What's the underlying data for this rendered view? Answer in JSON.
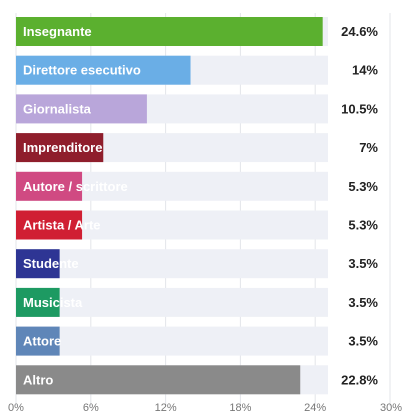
{
  "chart_data": {
    "type": "bar",
    "orientation": "horizontal",
    "categories": [
      "Insegnante",
      "Direttore esecutivo",
      "Giornalista",
      "Imprenditore",
      "Autore / scrittore",
      "Artista / Arte",
      "Studente",
      "Musicista",
      "Attore",
      "Altro"
    ],
    "values": [
      24.6,
      14,
      10.5,
      7,
      5.3,
      5.3,
      3.5,
      3.5,
      3.5,
      22.8
    ],
    "value_labels": [
      "24.6%",
      "14%",
      "10.5%",
      "7%",
      "5.3%",
      "5.3%",
      "3.5%",
      "3.5%",
      "3.5%",
      "22.8%"
    ],
    "colors": [
      "#5bb02f",
      "#6aaee6",
      "#b9a6da",
      "#8f1e2c",
      "#d04a82",
      "#d01f33",
      "#2e3594",
      "#1d9a62",
      "#5f86b8",
      "#8a8a8a"
    ],
    "xlim": [
      0,
      30
    ],
    "xticks": [
      "0%",
      "6%",
      "12%",
      "18%",
      "24%",
      "30%"
    ],
    "track_color": "#eef0f6",
    "grid": true
  }
}
